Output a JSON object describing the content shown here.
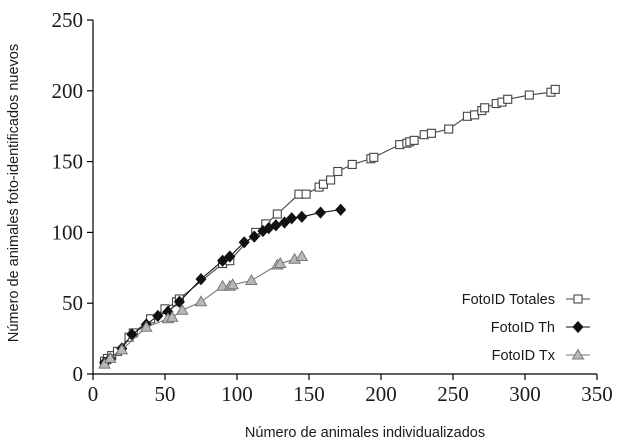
{
  "chart_data": {
    "type": "line",
    "xlabel": "Número de animales individualizados",
    "ylabel": "Número de animales foto-identificados nuevos",
    "xlim": [
      0,
      350
    ],
    "ylim": [
      0,
      250
    ],
    "xticks": [
      "0",
      "50",
      "100",
      "150",
      "200",
      "250",
      "300",
      "350"
    ],
    "yticks": [
      "0",
      "50",
      "100",
      "150",
      "200",
      "250"
    ],
    "grid": false,
    "legend_position": "bottom-right",
    "series": [
      {
        "name": "FotoID Totales",
        "marker": "open-square",
        "color": "#444444",
        "fill": "#ffffff",
        "x": [
          8,
          10,
          13,
          17,
          25,
          28,
          40,
          50,
          58,
          60,
          90,
          95,
          113,
          120,
          128,
          143,
          148,
          157,
          160,
          165,
          170,
          180,
          193,
          195,
          213,
          218,
          220,
          223,
          230,
          235,
          247,
          260,
          265,
          270,
          272,
          280,
          284,
          288,
          303,
          318,
          321
        ],
        "y": [
          9,
          11,
          13,
          16,
          26,
          29,
          39,
          46,
          51,
          53,
          78,
          80,
          100,
          106,
          113,
          127,
          127,
          132,
          134,
          137,
          143,
          148,
          152,
          153,
          162,
          163,
          164,
          165,
          169,
          170,
          173,
          182,
          183,
          186,
          188,
          191,
          192,
          194,
          197,
          199,
          201
        ]
      },
      {
        "name": "FotoID Th",
        "marker": "filled-diamond",
        "color": "#111111",
        "fill": "#111111",
        "x": [
          8,
          12,
          20,
          27,
          37,
          45,
          52,
          60,
          75,
          90,
          95,
          105,
          112,
          118,
          122,
          127,
          133,
          138,
          145,
          158,
          172
        ],
        "y": [
          8,
          11,
          18,
          28,
          35,
          41,
          44,
          51,
          67,
          80,
          83,
          93,
          97,
          101,
          103,
          105,
          107,
          110,
          111,
          114,
          116
        ]
      },
      {
        "name": "FotoID Tx",
        "marker": "triangle",
        "color": "#777777",
        "fill": "#b8b8b8",
        "x": [
          8,
          12,
          20,
          37,
          52,
          55,
          62,
          75,
          90,
          95,
          97,
          110,
          128,
          130,
          140,
          145
        ],
        "y": [
          7,
          11,
          17,
          33,
          39,
          40,
          45,
          51,
          62,
          62,
          63,
          66,
          77,
          78,
          81,
          83
        ]
      }
    ]
  }
}
